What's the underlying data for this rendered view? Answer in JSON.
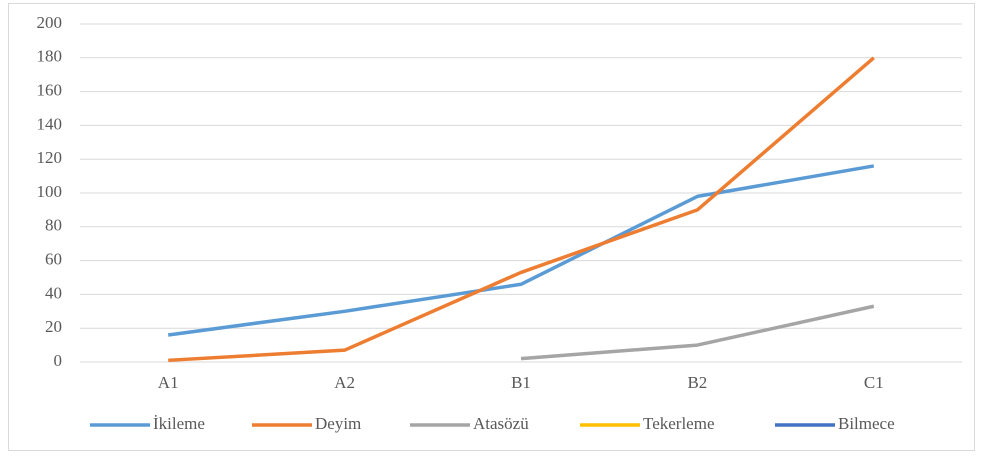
{
  "chart_data": {
    "type": "line",
    "categories": [
      "A1",
      "A2",
      "B1",
      "B2",
      "C1"
    ],
    "series": [
      {
        "name": "İkileme",
        "color": "#5b9bd5",
        "values": [
          16,
          30,
          46,
          98,
          116
        ]
      },
      {
        "name": "Deyim",
        "color": "#ed7d31",
        "values": [
          1,
          7,
          53,
          90,
          180
        ]
      },
      {
        "name": "Atasözü",
        "color": "#a5a5a5",
        "values": [
          null,
          null,
          2,
          10,
          33
        ]
      },
      {
        "name": "Tekerleme",
        "color": "#ffc000",
        "values": [
          null,
          null,
          null,
          null,
          null
        ]
      },
      {
        "name": "Bilmece",
        "color": "#4472c4",
        "values": [
          null,
          null,
          null,
          null,
          null
        ]
      }
    ],
    "ylim": [
      0,
      200
    ],
    "yticks": [
      0,
      20,
      40,
      60,
      80,
      100,
      120,
      140,
      160,
      180,
      200
    ],
    "grid": true,
    "legend": "bottom"
  }
}
